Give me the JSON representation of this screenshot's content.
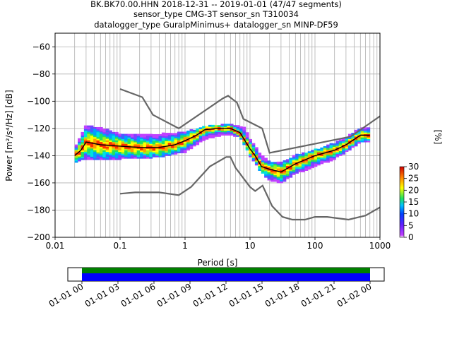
{
  "title_lines": [
    "BK.BK70.00.HHN   2018-12-31 -- 2019-01-01  (47/47 segments)",
    "sensor_type CMG-3T sensor_sn T310034",
    "datalogger_type GuralpMinimus+ datalogger_sn MINP-DF59"
  ],
  "colorbar": {
    "label": "[%]",
    "ticks": [
      "0",
      "5",
      "10",
      "15",
      "20",
      "25",
      "30"
    ],
    "range": [
      0,
      30
    ]
  },
  "timeline": {
    "tick_labels": [
      "01-01 00",
      "01-01 03",
      "01-01 06",
      "01-01 09",
      "01-01 12",
      "01-01 15",
      "01-01 18",
      "01-01 21",
      "01-02 00"
    ],
    "bands": [
      {
        "color": "#008000"
      },
      {
        "color": "#0000ff"
      }
    ]
  },
  "chart_data": {
    "type": "heatmap",
    "xlabel": "Period [s]",
    "ylabel": "Power [m²/s⁴/Hz] [dB]",
    "xscale": "log",
    "xlim": [
      0.01,
      1000
    ],
    "ylim": [
      -200,
      -50
    ],
    "x_tick_labels": [
      "0.01",
      "0.1",
      "1",
      "10",
      "100",
      "1000"
    ],
    "x_tick_values": [
      0.01,
      0.1,
      1,
      10,
      100,
      1000
    ],
    "y_ticks": [
      -200,
      -180,
      -160,
      -140,
      -120,
      -100,
      -80,
      -60
    ],
    "grid": true,
    "nhnm": [
      [
        0.1,
        -168
      ],
      [
        0.17,
        -167
      ],
      [
        0.4,
        -167
      ],
      [
        0.8,
        -169
      ],
      [
        1.24,
        -163
      ],
      [
        2.4,
        -148
      ],
      [
        4.3,
        -141
      ],
      [
        5,
        -141
      ],
      [
        6,
        -149
      ],
      [
        10,
        -163
      ],
      [
        12,
        -166
      ],
      [
        15.6,
        -162
      ],
      [
        21.9,
        -177
      ],
      [
        31.6,
        -185
      ],
      [
        45,
        -187
      ],
      [
        70,
        -187
      ],
      [
        100,
        -185
      ],
      [
        154,
        -185
      ],
      [
        328,
        -187
      ],
      [
        600,
        -184
      ],
      [
        1000,
        -178
      ]
    ],
    "nlnm": [
      [
        0.1,
        -91
      ],
      [
        0.22,
        -97
      ],
      [
        0.32,
        -110
      ],
      [
        0.8,
        -120
      ],
      [
        3.8,
        -98
      ],
      [
        4.6,
        -96
      ],
      [
        6.3,
        -101
      ],
      [
        7.9,
        -113
      ],
      [
        15.4,
        -120
      ],
      [
        20,
        -138
      ],
      [
        354.8,
        -126
      ],
      [
        1000,
        -111
      ]
    ],
    "mode": [
      [
        0.02,
        -140
      ],
      [
        0.025,
        -136
      ],
      [
        0.03,
        -130
      ],
      [
        0.05,
        -132
      ],
      [
        0.1,
        -133
      ],
      [
        0.2,
        -134
      ],
      [
        0.4,
        -134
      ],
      [
        0.7,
        -132
      ],
      [
        1,
        -129
      ],
      [
        1.5,
        -125
      ],
      [
        2,
        -121
      ],
      [
        3,
        -120
      ],
      [
        5,
        -120
      ],
      [
        7,
        -123
      ],
      [
        10,
        -135
      ],
      [
        12,
        -140
      ],
      [
        15,
        -148
      ],
      [
        20,
        -150
      ],
      [
        30,
        -152
      ],
      [
        50,
        -146
      ],
      [
        100,
        -140
      ],
      [
        200,
        -136
      ],
      [
        300,
        -132
      ],
      [
        500,
        -125
      ],
      [
        700,
        -125
      ]
    ],
    "psd_upper": [
      [
        0.02,
        -134
      ],
      [
        0.03,
        -118
      ],
      [
        0.05,
        -120
      ],
      [
        0.1,
        -124
      ],
      [
        0.3,
        -125
      ],
      [
        0.5,
        -124
      ],
      [
        1,
        -123
      ],
      [
        2,
        -119
      ],
      [
        5,
        -117
      ],
      [
        8,
        -119
      ],
      [
        10,
        -128
      ],
      [
        15,
        -140
      ],
      [
        20,
        -145
      ],
      [
        30,
        -145
      ],
      [
        50,
        -140
      ],
      [
        100,
        -136
      ],
      [
        200,
        -131
      ],
      [
        300,
        -127
      ],
      [
        500,
        -120
      ],
      [
        700,
        -120
      ]
    ],
    "psd_lower": [
      [
        0.02,
        -145
      ],
      [
        0.03,
        -142
      ],
      [
        0.05,
        -143
      ],
      [
        0.1,
        -142
      ],
      [
        0.3,
        -141
      ],
      [
        0.5,
        -140
      ],
      [
        1,
        -137
      ],
      [
        2,
        -128
      ],
      [
        4,
        -124
      ],
      [
        7,
        -126
      ],
      [
        10,
        -140
      ],
      [
        15,
        -152
      ],
      [
        20,
        -158
      ],
      [
        30,
        -160
      ],
      [
        50,
        -153
      ],
      [
        100,
        -148
      ],
      [
        200,
        -142
      ],
      [
        300,
        -137
      ],
      [
        500,
        -130
      ],
      [
        700,
        -130
      ]
    ]
  }
}
